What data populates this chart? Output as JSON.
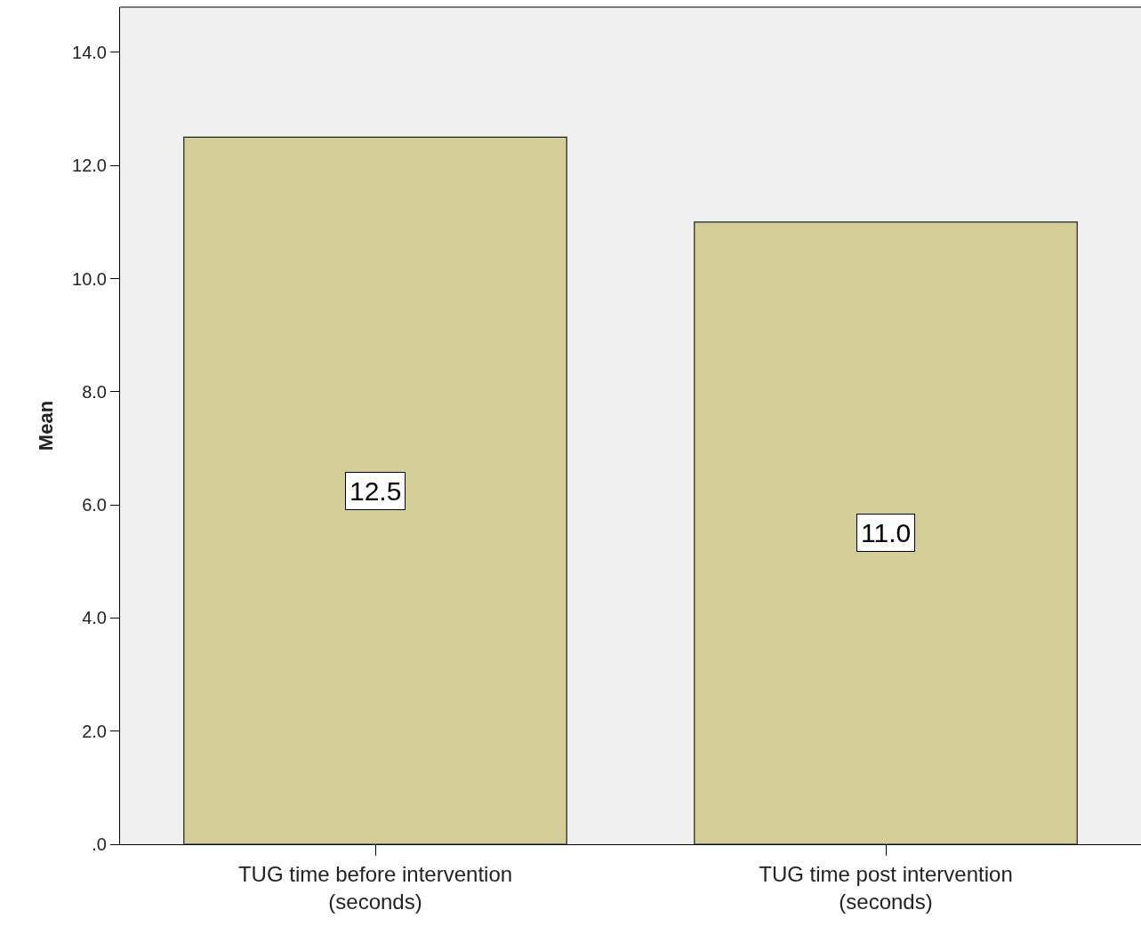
{
  "chart_data": {
    "type": "bar",
    "ylabel": "Mean",
    "categories": [
      "TUG time before intervention\n(seconds)",
      "TUG time post intervention\n(seconds)"
    ],
    "values": [
      12.5,
      11.0
    ],
    "value_labels": [
      "12.5",
      "11.0"
    ],
    "color": "#d3cd97",
    "ylim": [
      0,
      14.8
    ],
    "yticks": [
      {
        "value": 0,
        "label": ".0"
      },
      {
        "value": 2,
        "label": "2.0"
      },
      {
        "value": 4,
        "label": "4.0"
      },
      {
        "value": 6,
        "label": "6.0"
      },
      {
        "value": 8,
        "label": "8.0"
      },
      {
        "value": 10,
        "label": "10.0"
      },
      {
        "value": 12,
        "label": "12.0"
      },
      {
        "value": 14,
        "label": "14.0"
      }
    ],
    "grid": false,
    "legend": false
  }
}
